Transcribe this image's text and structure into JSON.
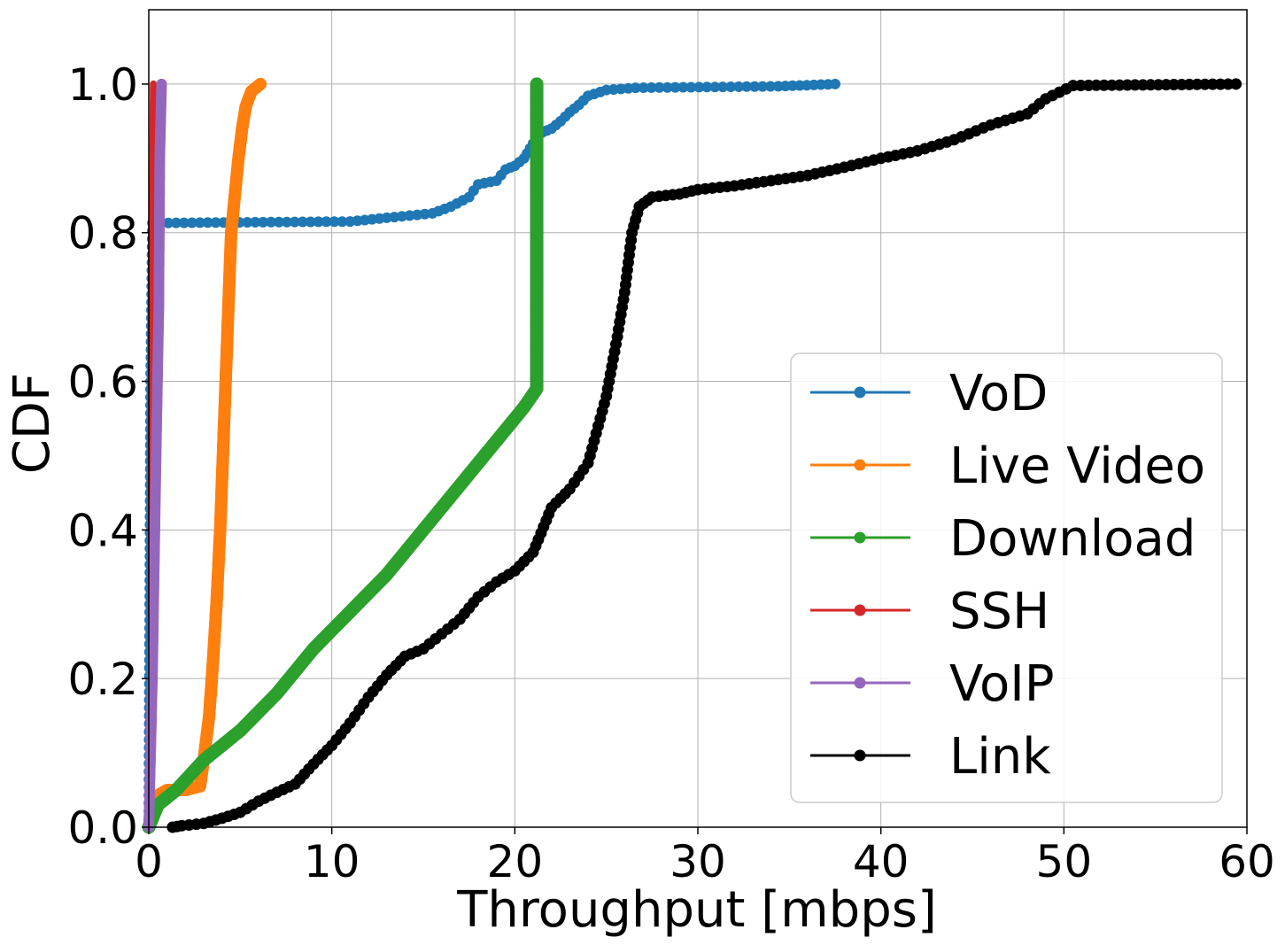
{
  "chart_data": {
    "type": "line",
    "title": "",
    "xlabel": "Throughput [mbps]",
    "ylabel": "CDF",
    "xlim": [
      0,
      60
    ],
    "ylim": [
      0,
      1.1
    ],
    "xticks": [
      0,
      10,
      20,
      30,
      40,
      50,
      60
    ],
    "xtick_labels": [
      "0",
      "10",
      "20",
      "30",
      "40",
      "50",
      "60"
    ],
    "yticks": [
      0,
      0.2,
      0.4,
      0.6,
      0.8,
      1.0
    ],
    "ytick_labels": [
      "0.0",
      "0.2",
      "0.4",
      "0.6",
      "0.8",
      "1.0"
    ],
    "grid": true,
    "legend_position": "lower-right",
    "series": [
      {
        "name": "VoD",
        "color": "#1f77b4",
        "points": [
          [
            0,
            0
          ],
          [
            0.05,
            0.3
          ],
          [
            0.1,
            0.6
          ],
          [
            0.2,
            0.813
          ],
          [
            11,
            0.815
          ],
          [
            13,
            0.82
          ],
          [
            15.5,
            0.826
          ],
          [
            16.5,
            0.835
          ],
          [
            17.5,
            0.848
          ],
          [
            18,
            0.865
          ],
          [
            19,
            0.87
          ],
          [
            19.5,
            0.885
          ],
          [
            20,
            0.89
          ],
          [
            20.5,
            0.9
          ],
          [
            21,
            0.92
          ],
          [
            21.5,
            0.935
          ],
          [
            22,
            0.94
          ],
          [
            22.5,
            0.95
          ],
          [
            23,
            0.962
          ],
          [
            23.5,
            0.972
          ],
          [
            24,
            0.984
          ],
          [
            25,
            0.992
          ],
          [
            26.6,
            0.995
          ],
          [
            34.4,
            0.997
          ],
          [
            37.5,
            1.0
          ]
        ]
      },
      {
        "name": "Live Video",
        "color": "#ff7f0e",
        "points": [
          [
            0,
            0
          ],
          [
            0.3,
            0.04
          ],
          [
            1,
            0.05
          ],
          [
            2,
            0.05
          ],
          [
            2.8,
            0.055
          ],
          [
            3,
            0.09
          ],
          [
            3.3,
            0.15
          ],
          [
            3.5,
            0.22
          ],
          [
            3.7,
            0.3
          ],
          [
            3.9,
            0.4
          ],
          [
            4.05,
            0.5
          ],
          [
            4.2,
            0.6
          ],
          [
            4.35,
            0.7
          ],
          [
            4.5,
            0.8
          ],
          [
            4.7,
            0.85
          ],
          [
            4.9,
            0.9
          ],
          [
            5.1,
            0.94
          ],
          [
            5.3,
            0.97
          ],
          [
            5.6,
            0.99
          ],
          [
            6.1,
            1.0
          ]
        ]
      },
      {
        "name": "Download",
        "color": "#2ca02c",
        "points": [
          [
            0,
            0
          ],
          [
            0.5,
            0.03
          ],
          [
            1.5,
            0.05
          ],
          [
            3,
            0.09
          ],
          [
            5,
            0.13
          ],
          [
            7,
            0.18
          ],
          [
            9,
            0.24
          ],
          [
            11,
            0.29
          ],
          [
            13,
            0.34
          ],
          [
            15,
            0.4
          ],
          [
            17,
            0.46
          ],
          [
            19,
            0.52
          ],
          [
            20.5,
            0.565
          ],
          [
            21.2,
            0.59
          ],
          [
            21.2,
            1.0
          ]
        ]
      },
      {
        "name": "SSH",
        "color": "#d62728",
        "points": [
          [
            0,
            0
          ],
          [
            0.1,
            0.2
          ],
          [
            0.15,
            0.5
          ],
          [
            0.2,
            0.8
          ],
          [
            0.25,
            1.0
          ]
        ]
      },
      {
        "name": "VoIP",
        "color": "#9467bd",
        "points": [
          [
            0,
            0
          ],
          [
            0.2,
            0.2
          ],
          [
            0.4,
            0.5
          ],
          [
            0.55,
            0.7
          ],
          [
            0.6,
            0.9
          ],
          [
            0.7,
            1.0
          ]
        ]
      },
      {
        "name": "Link",
        "color": "#000000",
        "points": [
          [
            1.3,
            0.0
          ],
          [
            1.8,
            0.002
          ],
          [
            3,
            0.005
          ],
          [
            4,
            0.012
          ],
          [
            5,
            0.02
          ],
          [
            6,
            0.035
          ],
          [
            7,
            0.047
          ],
          [
            8,
            0.058
          ],
          [
            9,
            0.085
          ],
          [
            10,
            0.11
          ],
          [
            11,
            0.14
          ],
          [
            12,
            0.175
          ],
          [
            13,
            0.205
          ],
          [
            14,
            0.23
          ],
          [
            15,
            0.24
          ],
          [
            16,
            0.26
          ],
          [
            17,
            0.28
          ],
          [
            18,
            0.31
          ],
          [
            19,
            0.33
          ],
          [
            20,
            0.345
          ],
          [
            21,
            0.37
          ],
          [
            22,
            0.43
          ],
          [
            23,
            0.455
          ],
          [
            24,
            0.49
          ],
          [
            25,
            0.58
          ],
          [
            25.6,
            0.66
          ],
          [
            26,
            0.72
          ],
          [
            26.4,
            0.8
          ],
          [
            26.8,
            0.835
          ],
          [
            27.5,
            0.848
          ],
          [
            29,
            0.852
          ],
          [
            30,
            0.858
          ],
          [
            32,
            0.863
          ],
          [
            34,
            0.87
          ],
          [
            36,
            0.877
          ],
          [
            38,
            0.888
          ],
          [
            40,
            0.9
          ],
          [
            42,
            0.91
          ],
          [
            44,
            0.925
          ],
          [
            46,
            0.945
          ],
          [
            48,
            0.96
          ],
          [
            49,
            0.98
          ],
          [
            50.5,
            0.998
          ],
          [
            59.4,
            1.0
          ]
        ]
      }
    ]
  }
}
